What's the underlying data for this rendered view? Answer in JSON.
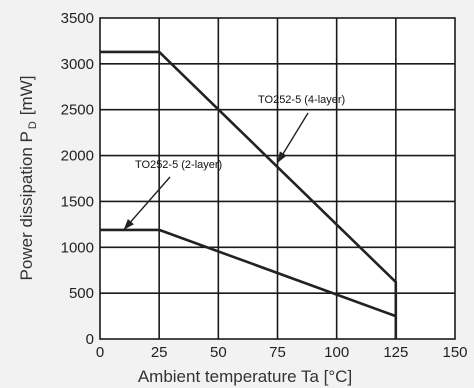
{
  "chart_data": {
    "type": "line",
    "xlabel": "Ambient temperature Ta [°C]",
    "ylabel_main": "Power dissipation P",
    "ylabel_sub": "D",
    "ylabel_unit": "[mW]",
    "xlim": [
      0,
      150
    ],
    "ylim": [
      0,
      3500
    ],
    "x_ticks": [
      0,
      25,
      50,
      75,
      100,
      125,
      150
    ],
    "y_ticks": [
      0,
      500,
      1000,
      1500,
      2000,
      2500,
      3000,
      3500
    ],
    "grid": true,
    "series": [
      {
        "name": "TO252-5 (4-layer)",
        "x": [
          0,
          25,
          125,
          125
        ],
        "y": [
          3130,
          3130,
          620,
          0
        ]
      },
      {
        "name": "TO252-5 (2-layer)",
        "x": [
          0,
          25,
          125
        ],
        "y": [
          1190,
          1190,
          250
        ]
      }
    ],
    "annotations": [
      {
        "text": "TO252-5 (4-layer)",
        "series": 0,
        "arrow_to": [
          75,
          1920
        ]
      },
      {
        "text": "TO252-5 (2-layer)",
        "series": 1,
        "arrow_to": [
          10,
          1190
        ]
      }
    ]
  }
}
